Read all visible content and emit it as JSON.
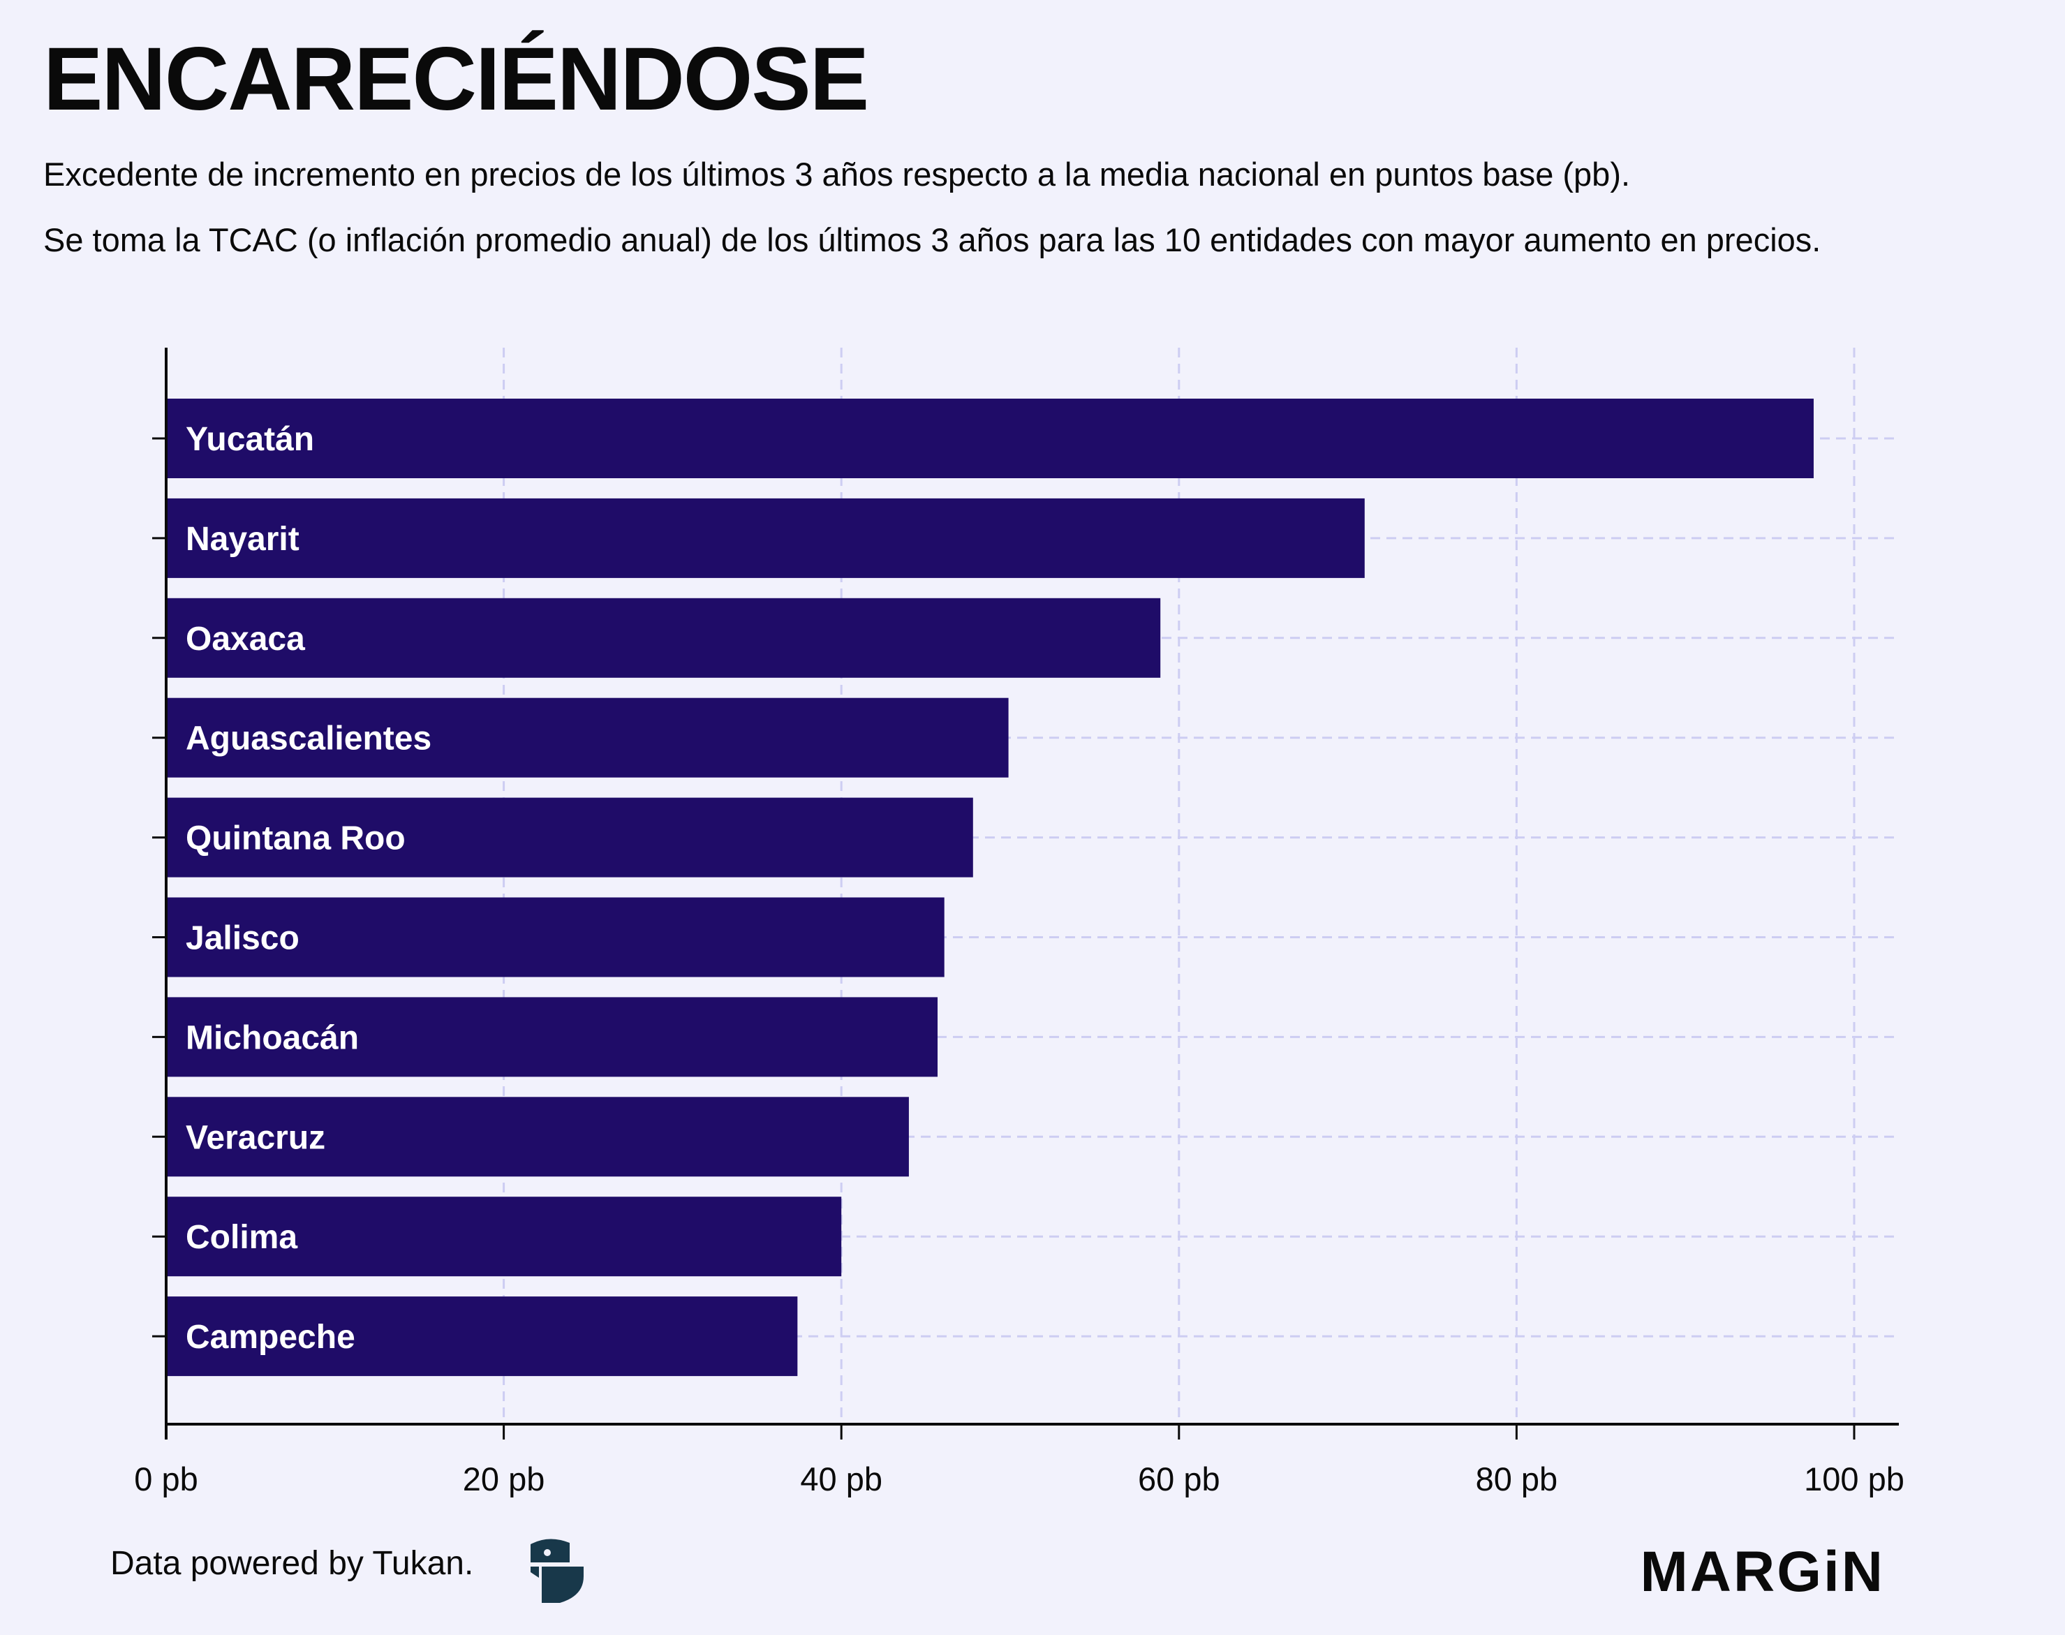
{
  "header": {
    "title": "ENCARECIÉNDOSE",
    "subtitle_1": "Excedente de incremento en precios de los últimos 3 años respecto a la media nacional en puntos base (pb).",
    "subtitle_2": "Se toma la TCAC (o inflación promedio anual) de los últimos 3 años para las 10 entidades con mayor aumento en precios."
  },
  "colors": {
    "background": "#f2f2fc",
    "bar": "#1f0c68",
    "grid": "#cdcdf2",
    "axis": "#0a0a0a",
    "logo": "#18384a"
  },
  "chart_data": {
    "type": "bar",
    "orientation": "horizontal",
    "title": "ENCARECIÉNDOSE",
    "xlabel": "",
    "ylabel": "",
    "unit": "pb",
    "categories": [
      "Yucatán",
      "Nayarit",
      "Oaxaca",
      "Aguascalientes",
      "Quintana Roo",
      "Jalisco",
      "Michoacán",
      "Veracruz",
      "Colima",
      "Campeche"
    ],
    "values": [
      97.6,
      71.0,
      58.9,
      49.9,
      47.8,
      46.1,
      45.7,
      44.0,
      40.0,
      37.4
    ],
    "xlim": [
      0,
      102.5
    ],
    "xticks": [
      0,
      20,
      40,
      60,
      80,
      100
    ],
    "xtick_labels": [
      "0 pb",
      "20 pb",
      "40 pb",
      "60 pb",
      "80 pb",
      "100 pb"
    ],
    "grid": true,
    "legend": "none"
  },
  "footer": {
    "credit": "Data powered by Tukan.",
    "tukan_logo_icon": "tukan-logo-icon",
    "brand": "MARGiN"
  }
}
